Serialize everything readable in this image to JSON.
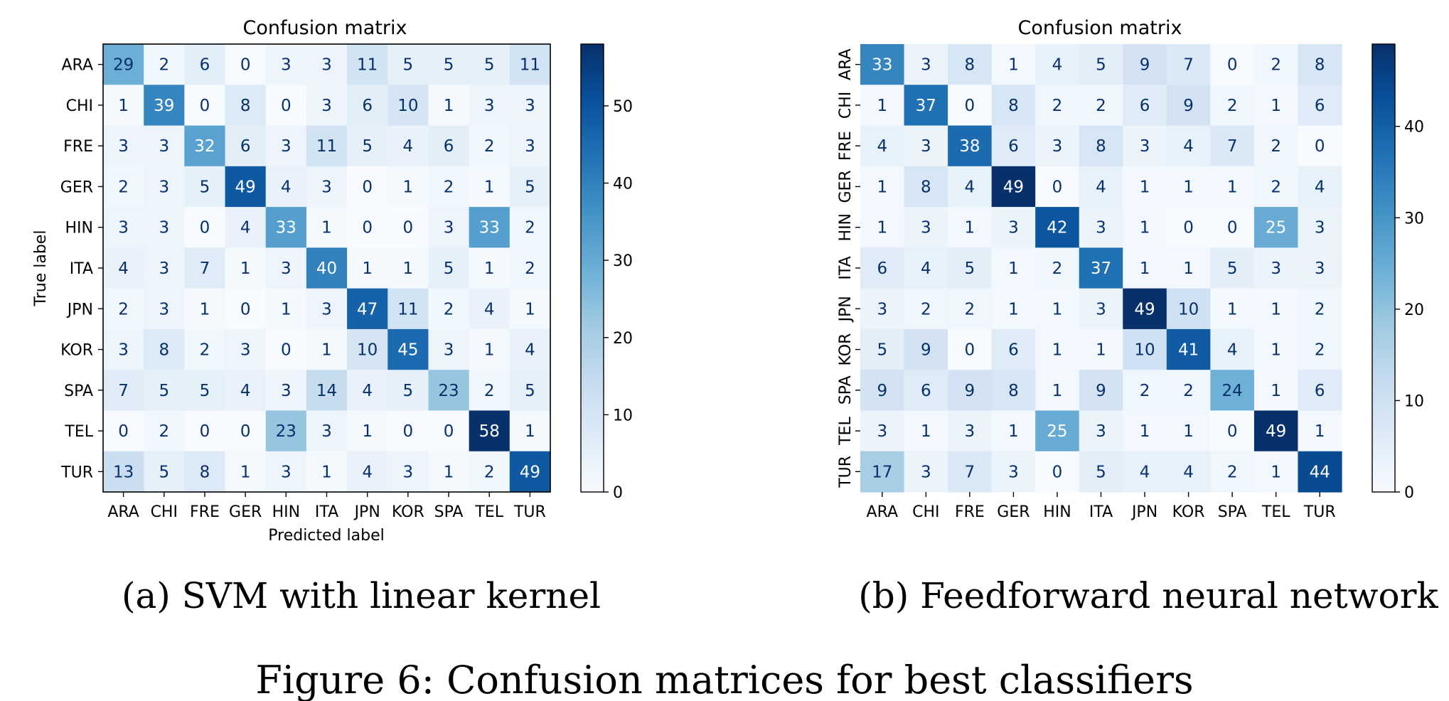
{
  "figure_caption": "Figure 6: Confusion matrices for best classifiers",
  "colors": {
    "scale": [
      "#f7fbff",
      "#deebf7",
      "#c6dbef",
      "#9ecae1",
      "#6baed6",
      "#4292c6",
      "#2171b5",
      "#08519c",
      "#08306b"
    ],
    "text_dark": "#08306b",
    "text_light": "#ffffff",
    "frame": "#000000"
  },
  "chart_data": [
    {
      "type": "heatmap",
      "title": "Confusion matrix",
      "subcaption": "(a) SVM with linear kernel",
      "xlabel": "Predicted label",
      "ylabel": "True label",
      "x_categories": [
        "ARA",
        "CHI",
        "FRE",
        "GER",
        "HIN",
        "ITA",
        "JPN",
        "KOR",
        "SPA",
        "TEL",
        "TUR"
      ],
      "y_categories": [
        "ARA",
        "CHI",
        "FRE",
        "GER",
        "HIN",
        "ITA",
        "JPN",
        "KOR",
        "SPA",
        "TEL",
        "TUR"
      ],
      "y_tick_rotation": "horizontal",
      "colormap": "Blues",
      "vmin": 0,
      "vmax": 58,
      "colorbar_ticks": [
        "0",
        "10",
        "20",
        "30",
        "40",
        "50"
      ],
      "values": [
        [
          29,
          2,
          6,
          0,
          3,
          3,
          11,
          5,
          5,
          5,
          11
        ],
        [
          1,
          39,
          0,
          8,
          0,
          3,
          6,
          10,
          1,
          3,
          3
        ],
        [
          3,
          3,
          32,
          6,
          3,
          11,
          5,
          4,
          6,
          2,
          3
        ],
        [
          2,
          3,
          5,
          49,
          4,
          3,
          0,
          1,
          2,
          1,
          5
        ],
        [
          3,
          3,
          0,
          4,
          33,
          1,
          0,
          0,
          3,
          33,
          2
        ],
        [
          4,
          3,
          7,
          1,
          3,
          40,
          1,
          1,
          5,
          1,
          2
        ],
        [
          2,
          3,
          1,
          0,
          1,
          3,
          47,
          11,
          2,
          4,
          1
        ],
        [
          3,
          8,
          2,
          3,
          0,
          1,
          10,
          45,
          3,
          1,
          4
        ],
        [
          7,
          5,
          5,
          4,
          3,
          14,
          4,
          5,
          23,
          2,
          5
        ],
        [
          0,
          2,
          0,
          0,
          23,
          3,
          1,
          0,
          0,
          58,
          1
        ],
        [
          13,
          5,
          8,
          1,
          3,
          1,
          4,
          3,
          1,
          2,
          49
        ]
      ]
    },
    {
      "type": "heatmap",
      "title": "Confusion matrix",
      "subcaption": "(b) Feedforward neural network",
      "xlabel": "",
      "ylabel": "",
      "x_categories": [
        "ARA",
        "CHI",
        "FRE",
        "GER",
        "HIN",
        "ITA",
        "JPN",
        "KOR",
        "SPA",
        "TEL",
        "TUR"
      ],
      "y_categories": [
        "ARA",
        "CHI",
        "FRE",
        "GER",
        "HIN",
        "ITA",
        "JPN",
        "KOR",
        "SPA",
        "TEL",
        "TUR"
      ],
      "y_tick_rotation": "vertical",
      "colormap": "Blues",
      "vmin": 0,
      "vmax": 49,
      "colorbar_ticks": [
        "0",
        "10",
        "20",
        "30",
        "40"
      ],
      "values": [
        [
          33,
          3,
          8,
          1,
          4,
          5,
          9,
          7,
          0,
          2,
          8
        ],
        [
          1,
          37,
          0,
          8,
          2,
          2,
          6,
          9,
          2,
          1,
          6
        ],
        [
          4,
          3,
          38,
          6,
          3,
          8,
          3,
          4,
          7,
          2,
          0
        ],
        [
          1,
          8,
          4,
          49,
          0,
          4,
          1,
          1,
          1,
          2,
          4
        ],
        [
          1,
          3,
          1,
          3,
          42,
          3,
          1,
          0,
          0,
          25,
          3
        ],
        [
          6,
          4,
          5,
          1,
          2,
          37,
          1,
          1,
          5,
          3,
          3
        ],
        [
          3,
          2,
          2,
          1,
          1,
          3,
          49,
          10,
          1,
          1,
          2
        ],
        [
          5,
          9,
          0,
          6,
          1,
          1,
          10,
          41,
          4,
          1,
          2
        ],
        [
          9,
          6,
          9,
          8,
          1,
          9,
          2,
          2,
          24,
          1,
          6
        ],
        [
          3,
          1,
          3,
          1,
          25,
          3,
          1,
          1,
          0,
          49,
          1
        ],
        [
          17,
          3,
          7,
          3,
          0,
          5,
          4,
          4,
          2,
          1,
          44
        ]
      ]
    }
  ]
}
